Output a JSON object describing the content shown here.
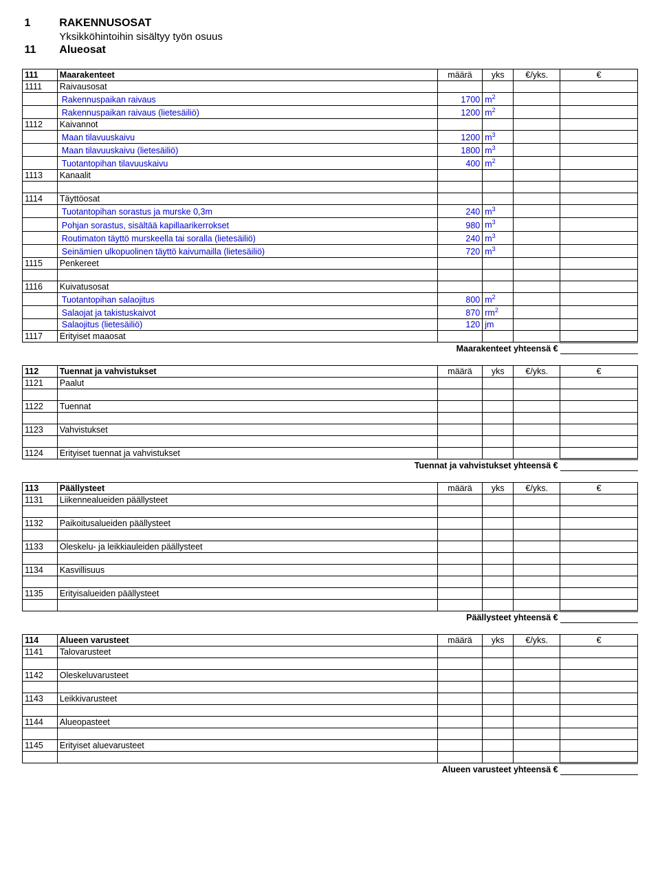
{
  "headings": {
    "h1_num": "1",
    "h1_text": "RAKENNUSOSAT",
    "h1_sub": "Yksikköhintoihin sisältyy työn osuus",
    "h11_num": "11",
    "h11_text": "Alueosat"
  },
  "col": {
    "maara": "määrä",
    "yks": "yks",
    "per": "€/yks.",
    "eur": "€"
  },
  "s111": {
    "num": "111",
    "title": "Maarakenteet",
    "r1111": {
      "n": "1111",
      "t": "Raivausosat"
    },
    "r1111a": {
      "t": "Rakennuspaikan raivaus",
      "v": "1700",
      "u": "m",
      "e": "2"
    },
    "r1111b": {
      "t": "Rakennuspaikan raivaus (lietesäiliö)",
      "v": "1200",
      "u": "m",
      "e": "2"
    },
    "r1112": {
      "n": "1112",
      "t": "Kaivannot"
    },
    "r1112a": {
      "t": "Maan tilavuuskaivu",
      "v": "1200",
      "u": "m",
      "e": "3"
    },
    "r1112b": {
      "t": "Maan tilavuuskaivu (lietesäiliö)",
      "v": "1800",
      "u": "m",
      "e": "3"
    },
    "r1112c": {
      "t": "Tuotantopihan tilavuuskaivu",
      "v": "400",
      "u": "m",
      "e": "2"
    },
    "r1113": {
      "n": "1113",
      "t": "Kanaalit"
    },
    "r1114": {
      "n": "1114",
      "t": "Täyttöosat"
    },
    "r1114a": {
      "t": "Tuotantopihan sorastus ja murske 0,3m",
      "v": "240",
      "u": "m",
      "e": "3"
    },
    "r1114b": {
      "t": "Pohjan sorastus, sisältää kapillaarikerrokset",
      "v": "980",
      "u": "m",
      "e": "3"
    },
    "r1114c": {
      "t": "Routimaton täyttö murskeella tai soralla (lietesäiliö)",
      "v": "240",
      "u": "m",
      "e": "3"
    },
    "r1114d": {
      "t": "Seinämien ulkopuolinen täyttö kaivumailla (lietesäiliö)",
      "v": "720",
      "u": "m",
      "e": "3"
    },
    "r1115": {
      "n": "1115",
      "t": "Penkereet"
    },
    "r1116": {
      "n": "1116",
      "t": "Kuivatusosat"
    },
    "r1116a": {
      "t": "Tuotantopihan salaojitus",
      "v": "800",
      "u": "m",
      "e": "2"
    },
    "r1116b": {
      "t": "Salaojat ja takistuskaivot",
      "v": "870",
      "u": "rm",
      "e": "2"
    },
    "r1116c": {
      "t": "Salaojitus (lietesäiliö)",
      "v": "120",
      "u": "jm",
      "e": ""
    },
    "r1117": {
      "n": "1117",
      "t": "Erityiset maaosat"
    },
    "total": "Maarakenteet yhteensä €"
  },
  "s112": {
    "num": "112",
    "title": "Tuennat ja vahvistukset",
    "r1121": {
      "n": "1121",
      "t": "Paalut"
    },
    "r1122": {
      "n": "1122",
      "t": "Tuennat"
    },
    "r1123": {
      "n": "1123",
      "t": "Vahvistukset"
    },
    "r1124": {
      "n": "1124",
      "t": "Erityiset tuennat ja vahvistukset"
    },
    "total": "Tuennat ja vahvistukset yhteensä €"
  },
  "s113": {
    "num": "113",
    "title": "Päällysteet",
    "r1131": {
      "n": "1131",
      "t": "Liikennealueiden päällysteet"
    },
    "r1132": {
      "n": "1132",
      "t": "Paikoitusalueiden päällysteet"
    },
    "r1133": {
      "n": "1133",
      "t": "Oleskelu- ja leikkiauleiden päällysteet"
    },
    "r1134": {
      "n": "1134",
      "t": "Kasvillisuus"
    },
    "r1135": {
      "n": "1135",
      "t": "Erityisalueiden päällysteet"
    },
    "total": "Päällysteet yhteensä €"
  },
  "s114": {
    "num": "114",
    "title": "Alueen varusteet",
    "r1141": {
      "n": "1141",
      "t": "Talovarusteet"
    },
    "r1142": {
      "n": "1142",
      "t": "Oleskeluvarusteet"
    },
    "r1143": {
      "n": "1143",
      "t": "Leikkivarusteet"
    },
    "r1144": {
      "n": "1144",
      "t": "Alueopasteet"
    },
    "r1145": {
      "n": "1145",
      "t": "Erityiset aluevarusteet"
    },
    "total": "Alueen varusteet yhteensä €"
  }
}
